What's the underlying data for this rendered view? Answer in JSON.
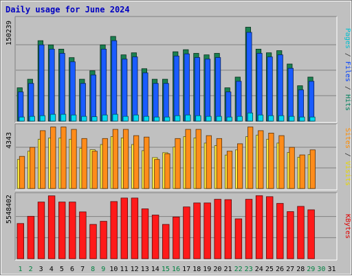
{
  "chart_data": {
    "type": "bar",
    "title": "Daily usage for June 2024",
    "categories": [
      "1",
      "2",
      "3",
      "4",
      "5",
      "6",
      "7",
      "8",
      "9",
      "10",
      "11",
      "12",
      "13",
      "14",
      "15",
      "16",
      "17",
      "18",
      "19",
      "20",
      "21",
      "22",
      "23",
      "24",
      "25",
      "26",
      "27",
      "28",
      "29",
      "30",
      "31"
    ],
    "weekend_days": [
      1,
      2,
      8,
      9,
      15,
      16,
      22,
      23,
      29,
      30
    ],
    "panels": [
      {
        "ymax_label": "150239",
        "ymax": 150239,
        "legend": [
          {
            "text": "Pages",
            "color": "#00c0d0"
          },
          {
            "text": " / ",
            "color": "#333333"
          },
          {
            "text": "Files",
            "color": "#0040ff"
          },
          {
            "text": " / ",
            "color": "#333333"
          },
          {
            "text": "Hits",
            "color": "#00805c"
          }
        ],
        "series": [
          {
            "name": "Hits",
            "color": "#1a8050",
            "values": [
              49120,
              61810,
              118700,
              112500,
              106200,
              93700,
              61810,
              74300,
              112500,
              125000,
              97800,
              100800,
              77400,
              61810,
              61810,
              102300,
              105400,
              100000,
              97800,
              100000,
              49120,
              65000,
              138600,
              106200,
              100800,
              103900,
              84300,
              52200,
              65000,
              0,
              0
            ]
          },
          {
            "name": "Files",
            "color": "#1a5cff",
            "values": [
              43000,
              55600,
              112500,
              106200,
              100000,
              87500,
              55600,
              68000,
              106200,
              118700,
              91500,
              94700,
              71200,
              55600,
              55600,
              96000,
              99200,
              93800,
              91500,
              93800,
              43000,
              58800,
              131000,
              100000,
              94700,
              97800,
              78000,
              46000,
              58800,
              0,
              0
            ]
          },
          {
            "name": "Pages",
            "color": "#00d8f0",
            "values": [
              6000,
              7000,
              8000,
              10000,
              10000,
              9000,
              7000,
              6500,
              9000,
              10000,
              7000,
              9000,
              7000,
              6000,
              6000,
              8000,
              9000,
              8000,
              7000,
              7000,
              6000,
              7000,
              12000,
              9000,
              8000,
              8000,
              7000,
              6000,
              6000,
              0,
              0
            ]
          }
        ]
      },
      {
        "ymax_label": "4343",
        "ymax": 4343,
        "legend": [
          {
            "text": "Sites",
            "color": "#ff8c00"
          },
          {
            "text": " / ",
            "color": "#333333"
          },
          {
            "text": "Visits",
            "color": "#e8d800"
          }
        ],
        "series": [
          {
            "name": "Visits",
            "color": "#ffee40",
            "values": [
              2040,
              2620,
              3460,
              3550,
              3550,
              3460,
              2820,
              2720,
              3090,
              3640,
              3550,
              3090,
              2660,
              2170,
              2520,
              2910,
              3640,
              3550,
              3190,
              3010,
              2350,
              2710,
              3640,
              3750,
              3460,
              3190,
              2530,
              2200,
              2380,
              0,
              0
            ]
          },
          {
            "name": "Sites",
            "color": "#ff8c1a",
            "values": [
              2260,
              2890,
              4060,
              4320,
              4320,
              4150,
              3510,
              2620,
              3510,
              4150,
              4150,
              3710,
              3610,
              2040,
              2440,
              3510,
              4150,
              4150,
              3710,
              3510,
              2620,
              3140,
              4320,
              4060,
              3890,
              3710,
              2890,
              2360,
              2710,
              0,
              0
            ]
          }
        ]
      },
      {
        "ymax_label": "5548402",
        "ymax": 5548402,
        "legend": [
          {
            "text": "KBytes",
            "color": "#e00000"
          }
        ],
        "series": [
          {
            "name": "KBytes",
            "color": "#ff1a1a",
            "values": [
              3090000,
              3720000,
              4970000,
              5510000,
              4970000,
              4970000,
              4110000,
              3010000,
              3280000,
              5010000,
              5320000,
              5320000,
              4370000,
              3830000,
              3010000,
              3660000,
              4540000,
              4890000,
              4890000,
              5210000,
              5180000,
              3500000,
              5210000,
              5530000,
              5440000,
              4850000,
              4130000,
              4590000,
              4290000,
              0,
              0
            ]
          }
        ]
      }
    ]
  }
}
